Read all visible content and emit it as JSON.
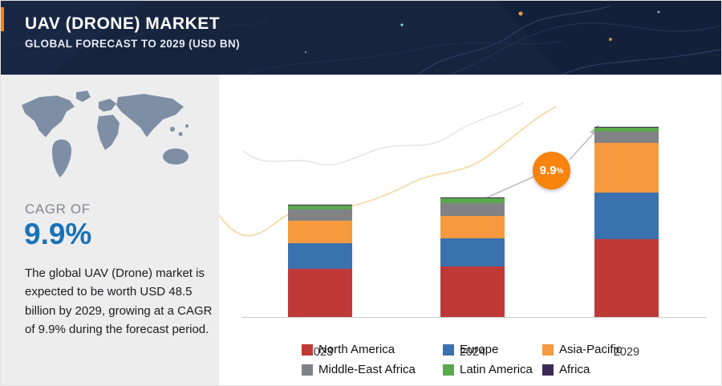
{
  "header": {
    "title": "UAV (DRONE) MARKET",
    "subtitle": "GLOBAL FORECAST TO 2029 (USD BN)"
  },
  "sidebar": {
    "cagr_label": "CAGR OF",
    "cagr_value": "9.9%",
    "description": "The global UAV (Drone) market is expected to be worth USD 48.5 billion by 2029, growing at a CAGR of 9.9% during the forecast period."
  },
  "chart": {
    "badge_number": "9.9",
    "badge_percent": "%"
  },
  "theme": {
    "header_bg": "#16243e",
    "sidebar_bg": "#ededee",
    "accent_orange": "#f8830d",
    "cagr_blue": "#1a72b8",
    "axis_gray": "#cccccc"
  },
  "chart_data": {
    "type": "bar",
    "stacked": true,
    "title": "UAV (Drone) Market, Global Forecast to 2029 (USD BN)",
    "categories": [
      "2023",
      "2024",
      "2029"
    ],
    "series": [
      {
        "name": "North America",
        "color": "#bf3a36",
        "values": [
          12.4,
          13.1,
          20.0
        ]
      },
      {
        "name": "Europe",
        "color": "#3a72b0",
        "values": [
          6.5,
          7.2,
          11.8
        ]
      },
      {
        "name": "Asia-Pacific",
        "color": "#f79a3f",
        "values": [
          5.8,
          5.8,
          12.6
        ]
      },
      {
        "name": "Middle-East Africa",
        "color": "#808285",
        "values": [
          2.9,
          3.3,
          2.8
        ]
      },
      {
        "name": "Latin America",
        "color": "#5aa94b",
        "values": [
          1.0,
          1.2,
          1.0
        ]
      },
      {
        "name": "Africa",
        "color": "#3d2b56",
        "values": [
          0.2,
          0.2,
          0.3
        ]
      }
    ],
    "totals": [
      28.8,
      30.8,
      48.5
    ],
    "ylabel": "USD BN",
    "legend_position": "bottom",
    "annotation": {
      "text": "9.9%",
      "type": "cagr-bubble"
    }
  }
}
